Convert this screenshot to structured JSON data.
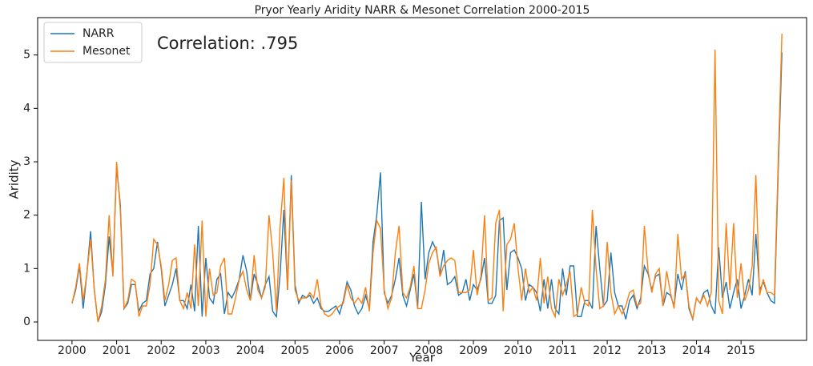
{
  "chart_data": {
    "type": "line",
    "title": "Pryor Yearly Aridity NARR & Mesonet Correlation 2000-2015",
    "xlabel": "Year",
    "ylabel": "Aridity",
    "annotation": "Correlation: .795",
    "legend": "upper left",
    "x": [
      2000.0,
      2000.083,
      2000.167,
      2000.25,
      2000.333,
      2000.417,
      2000.5,
      2000.583,
      2000.667,
      2000.75,
      2000.833,
      2000.917,
      2001.0,
      2001.083,
      2001.167,
      2001.25,
      2001.333,
      2001.417,
      2001.5,
      2001.583,
      2001.667,
      2001.75,
      2001.833,
      2001.917,
      2002.0,
      2002.083,
      2002.167,
      2002.25,
      2002.333,
      2002.417,
      2002.5,
      2002.583,
      2002.667,
      2002.75,
      2002.833,
      2002.917,
      2003.0,
      2003.083,
      2003.167,
      2003.25,
      2003.333,
      2003.417,
      2003.5,
      2003.583,
      2003.667,
      2003.75,
      2003.833,
      2003.917,
      2004.0,
      2004.083,
      2004.167,
      2004.25,
      2004.333,
      2004.417,
      2004.5,
      2004.583,
      2004.667,
      2004.75,
      2004.833,
      2004.917,
      2005.0,
      2005.083,
      2005.167,
      2005.25,
      2005.333,
      2005.417,
      2005.5,
      2005.583,
      2005.667,
      2005.75,
      2005.833,
      2005.917,
      2006.0,
      2006.083,
      2006.167,
      2006.25,
      2006.333,
      2006.417,
      2006.5,
      2006.583,
      2006.667,
      2006.75,
      2006.833,
      2006.917,
      2007.0,
      2007.083,
      2007.167,
      2007.25,
      2007.333,
      2007.417,
      2007.5,
      2007.583,
      2007.667,
      2007.75,
      2007.833,
      2007.917,
      2008.0,
      2008.083,
      2008.167,
      2008.25,
      2008.333,
      2008.417,
      2008.5,
      2008.583,
      2008.667,
      2008.75,
      2008.833,
      2008.917,
      2009.0,
      2009.083,
      2009.167,
      2009.25,
      2009.333,
      2009.417,
      2009.5,
      2009.583,
      2009.667,
      2009.75,
      2009.833,
      2009.917,
      2010.0,
      2010.083,
      2010.167,
      2010.25,
      2010.333,
      2010.417,
      2010.5,
      2010.583,
      2010.667,
      2010.75,
      2010.833,
      2010.917,
      2011.0,
      2011.083,
      2011.167,
      2011.25,
      2011.333,
      2011.417,
      2011.5,
      2011.583,
      2011.667,
      2011.75,
      2011.833,
      2011.917,
      2012.0,
      2012.083,
      2012.167,
      2012.25,
      2012.333,
      2012.417,
      2012.5,
      2012.583,
      2012.667,
      2012.75,
      2012.833,
      2012.917,
      2013.0,
      2013.083,
      2013.167,
      2013.25,
      2013.333,
      2013.417,
      2013.5,
      2013.583,
      2013.667,
      2013.75,
      2013.833,
      2013.917,
      2014.0,
      2014.083,
      2014.167,
      2014.25,
      2014.333,
      2014.417,
      2014.5,
      2014.583,
      2014.667,
      2014.75,
      2014.833,
      2014.917,
      2015.0,
      2015.083,
      2015.167,
      2015.25,
      2015.333,
      2015.417,
      2015.5,
      2015.583,
      2015.667,
      2015.75,
      2015.833,
      2015.917
    ],
    "series": [
      {
        "name": "NARR",
        "color": "#1f77b4",
        "values": [
          0.35,
          0.6,
          1.05,
          0.25,
          0.9,
          1.7,
          0.6,
          0.0,
          0.2,
          0.7,
          1.6,
          0.9,
          2.9,
          2.2,
          0.25,
          0.35,
          0.7,
          0.7,
          0.2,
          0.35,
          0.4,
          0.9,
          1.0,
          1.5,
          1.0,
          0.3,
          0.5,
          0.7,
          1.0,
          0.4,
          0.4,
          0.25,
          0.7,
          0.2,
          1.8,
          0.1,
          1.2,
          0.45,
          0.35,
          0.8,
          0.9,
          0.15,
          0.55,
          0.45,
          0.6,
          0.8,
          1.25,
          0.95,
          0.4,
          0.9,
          0.7,
          0.45,
          0.7,
          0.85,
          0.2,
          0.1,
          0.9,
          2.1,
          0.6,
          2.75,
          0.7,
          0.35,
          0.5,
          0.45,
          0.5,
          0.35,
          0.45,
          0.25,
          0.2,
          0.2,
          0.25,
          0.3,
          0.15,
          0.4,
          0.75,
          0.6,
          0.3,
          0.15,
          0.25,
          0.5,
          0.25,
          1.5,
          2.0,
          2.8,
          0.55,
          0.35,
          0.5,
          0.8,
          1.2,
          0.5,
          0.3,
          0.6,
          0.9,
          0.25,
          2.25,
          0.8,
          1.3,
          1.5,
          1.35,
          0.9,
          1.35,
          0.7,
          0.75,
          0.85,
          0.5,
          0.55,
          0.8,
          0.4,
          0.7,
          0.6,
          0.8,
          1.2,
          0.35,
          0.35,
          0.5,
          1.9,
          1.95,
          0.6,
          1.3,
          1.35,
          1.2,
          1.0,
          0.4,
          0.7,
          0.65,
          0.55,
          0.2,
          0.8,
          0.25,
          0.8,
          0.25,
          0.15,
          1.0,
          0.5,
          1.05,
          1.05,
          0.1,
          0.1,
          0.4,
          0.4,
          0.25,
          1.8,
          1.0,
          0.3,
          0.4,
          1.3,
          0.55,
          0.3,
          0.3,
          0.05,
          0.4,
          0.5,
          0.25,
          0.45,
          1.05,
          0.9,
          0.6,
          0.85,
          0.9,
          0.3,
          0.55,
          0.5,
          0.3,
          0.9,
          0.6,
          0.95,
          0.25,
          0.05,
          0.45,
          0.35,
          0.55,
          0.6,
          0.3,
          0.15,
          1.4,
          0.45,
          0.75,
          0.25,
          0.55,
          0.8,
          0.25,
          0.5,
          0.8,
          0.5,
          1.65,
          0.6,
          0.75,
          0.55,
          0.4,
          0.35,
          2.8,
          5.05
        ]
      },
      {
        "name": "Mesonet",
        "color": "#ff7f0e",
        "values": [
          0.35,
          0.65,
          1.1,
          0.4,
          0.9,
          1.55,
          0.6,
          0.0,
          0.3,
          0.8,
          2.0,
          0.85,
          3.0,
          2.1,
          0.25,
          0.4,
          0.8,
          0.75,
          0.1,
          0.3,
          0.3,
          0.7,
          1.55,
          1.45,
          1.05,
          0.4,
          0.7,
          1.15,
          1.2,
          0.4,
          0.25,
          0.55,
          0.25,
          1.45,
          0.3,
          1.9,
          0.1,
          1.0,
          0.5,
          0.55,
          1.05,
          1.2,
          0.15,
          0.15,
          0.45,
          0.8,
          0.95,
          0.6,
          0.4,
          1.25,
          0.6,
          0.45,
          0.65,
          2.0,
          1.3,
          0.2,
          1.8,
          2.7,
          0.6,
          2.65,
          0.6,
          0.4,
          0.45,
          0.45,
          0.55,
          0.45,
          0.8,
          0.3,
          0.15,
          0.1,
          0.15,
          0.25,
          0.3,
          0.35,
          0.7,
          0.45,
          0.35,
          0.45,
          0.35,
          0.65,
          0.2,
          1.3,
          1.9,
          1.75,
          0.6,
          0.25,
          0.45,
          1.3,
          1.8,
          0.55,
          0.45,
          0.65,
          1.05,
          0.25,
          0.25,
          0.6,
          1.1,
          1.3,
          1.4,
          0.85,
          1.05,
          1.15,
          1.2,
          1.15,
          0.55,
          0.55,
          0.55,
          0.6,
          1.35,
          0.5,
          0.85,
          2.0,
          0.4,
          0.45,
          1.85,
          2.1,
          0.2,
          1.45,
          1.55,
          1.85,
          1.0,
          0.4,
          1.0,
          0.55,
          0.65,
          0.4,
          1.2,
          0.35,
          0.85,
          0.25,
          0.1,
          0.8,
          0.5,
          0.7,
          0.95,
          0.1,
          0.15,
          0.65,
          0.35,
          0.3,
          2.1,
          1.0,
          0.25,
          0.3,
          1.5,
          0.55,
          0.15,
          0.3,
          0.15,
          0.3,
          0.55,
          0.6,
          0.3,
          0.35,
          1.8,
          0.95,
          0.55,
          0.9,
          1.0,
          0.3,
          0.95,
          0.55,
          0.25,
          1.65,
          0.8,
          0.9,
          0.3,
          0.05,
          0.45,
          0.35,
          0.5,
          0.3,
          0.55,
          5.1,
          0.4,
          0.15,
          1.85,
          0.6,
          1.85,
          0.45,
          1.1,
          0.4,
          0.6,
          1.05,
          2.75,
          0.5,
          0.8,
          0.55,
          0.55,
          0.5,
          3.0,
          5.4
        ]
      }
    ],
    "xlim": [
      1999.23,
      2016.47
    ],
    "ylim": [
      -0.345,
      5.7
    ],
    "xticks": [
      2000,
      2001,
      2002,
      2003,
      2004,
      2005,
      2006,
      2007,
      2008,
      2009,
      2010,
      2011,
      2012,
      2013,
      2014,
      2015
    ],
    "yticks": [
      0,
      1,
      2,
      3,
      4,
      5
    ]
  }
}
